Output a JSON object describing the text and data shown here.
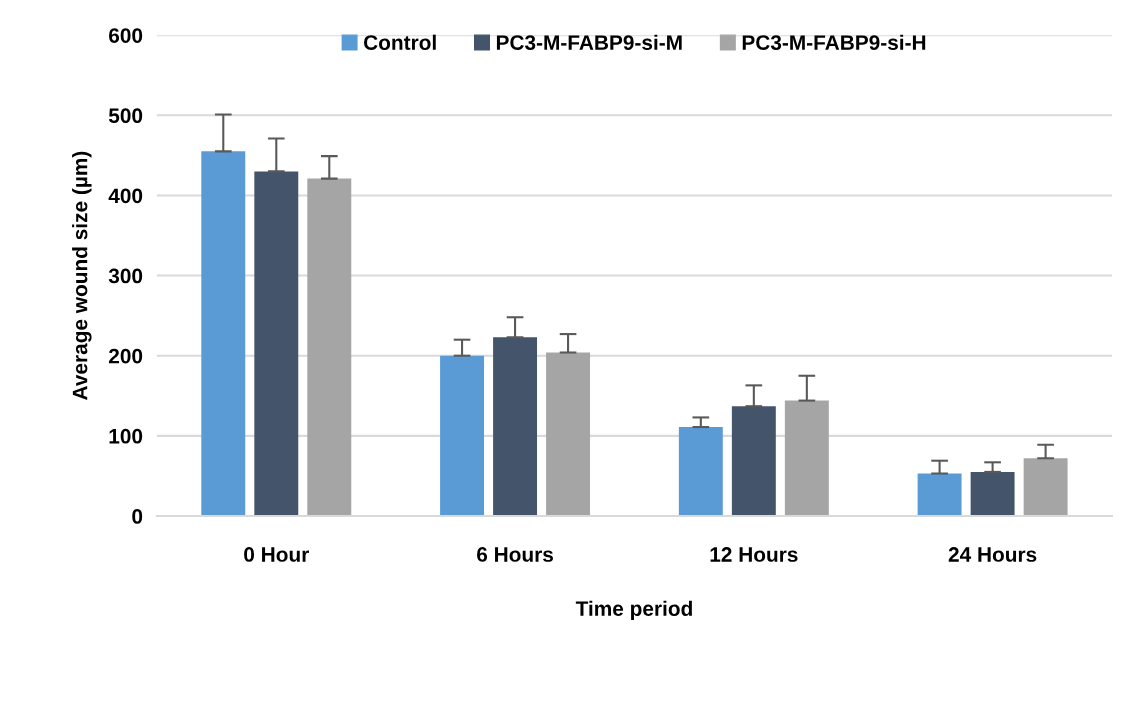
{
  "chart_data": {
    "type": "bar",
    "xlabel": "Time period",
    "ylabel": "Average wound size (µm)",
    "categories": [
      "0 Hour",
      "6 Hours",
      "12 Hours",
      "24 Hours"
    ],
    "series": [
      {
        "name": "Control",
        "color": "#5b9bd5",
        "values": [
          455,
          200,
          111,
          53
        ],
        "errors": [
          [
            455,
            501
          ],
          [
            200,
            220
          ],
          [
            111,
            123
          ],
          [
            53,
            69
          ]
        ]
      },
      {
        "name": "PC3-M-FABP9-si-M",
        "color": "#44546a",
        "values": [
          430,
          223,
          137,
          55
        ],
        "errors": [
          [
            430,
            471
          ],
          [
            223,
            248
          ],
          [
            137,
            163
          ],
          [
            55,
            67
          ]
        ]
      },
      {
        "name": "PC3-M-FABP9-si-H",
        "color": "#a5a5a5",
        "values": [
          421,
          204,
          144,
          72
        ],
        "errors": [
          [
            421,
            449
          ],
          [
            204,
            227
          ],
          [
            144,
            175
          ],
          [
            72,
            89
          ]
        ]
      }
    ],
    "ylim": [
      0,
      600
    ],
    "yticks": [
      0,
      100,
      200,
      300,
      400,
      500,
      600
    ],
    "grid": "y",
    "legend": "top"
  }
}
